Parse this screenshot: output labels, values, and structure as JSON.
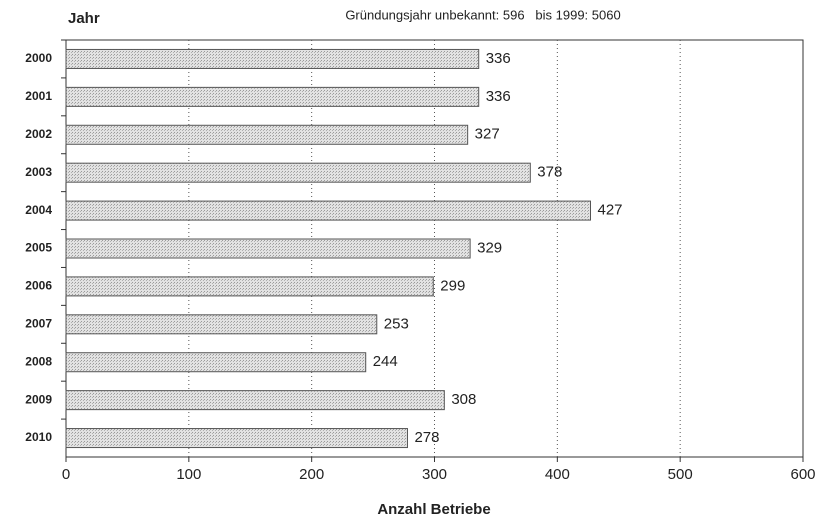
{
  "chart_data": {
    "type": "bar",
    "orientation": "horizontal",
    "y_label": "Jahr",
    "subtitle": "Gründungsjahr unbekannt: 596   bis 1999: 5060",
    "x_label": "Anzahl Betriebe",
    "categories": [
      "2000",
      "2001",
      "2002",
      "2003",
      "2004",
      "2005",
      "2006",
      "2007",
      "2008",
      "2009",
      "2010"
    ],
    "values": [
      336,
      336,
      327,
      378,
      427,
      329,
      299,
      253,
      244,
      308,
      278
    ],
    "color": "#cfcfcf",
    "xlim": [
      0,
      600
    ],
    "xticks": [
      0,
      100,
      200,
      300,
      400,
      500,
      600
    ],
    "grid": true
  }
}
